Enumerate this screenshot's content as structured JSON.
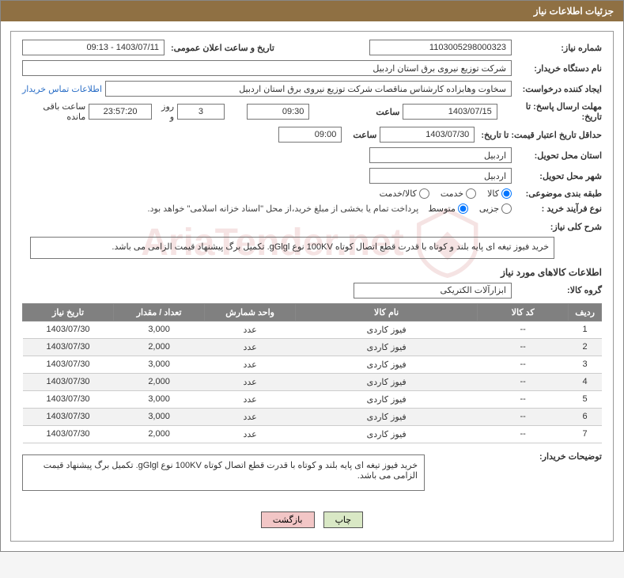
{
  "header": {
    "title": "جزئیات اطلاعات نیاز"
  },
  "labels": {
    "need_no": "شماره نیاز:",
    "announce_dt": "تاریخ و ساعت اعلان عمومی:",
    "buyer_name": "نام دستگاه خریدار:",
    "requester": "ایجاد کننده درخواست:",
    "contact_link": "اطلاعات تماس خریدار",
    "deadline": "مهلت ارسال پاسخ: تا تاریخ:",
    "hour": "ساعت",
    "days_and": "روز و",
    "remain": "ساعت باقی مانده",
    "validity": "حداقل تاریخ اعتبار قیمت: تا تاریخ:",
    "province": "استان محل تحویل:",
    "city": "شهر محل تحویل:",
    "category": "طبقه بندی موضوعی:",
    "cat_goods": "کالا",
    "cat_service": "خدمت",
    "cat_both": "کالا/خدمت",
    "process": "نوع فرآیند خرید :",
    "proc_small": "جزیی",
    "proc_medium": "متوسط",
    "process_note": "پرداخت تمام یا بخشی از مبلغ خرید،از محل \"اسناد خزانه اسلامی\" خواهد بود.",
    "general_desc": "شرح کلی نیاز:",
    "goods_info": "اطلاعات کالاهای مورد نیاز",
    "goods_group": "گروه کالا:",
    "buyer_notes": "توضیحات خریدار:"
  },
  "fields": {
    "need_no": "1103005298000323",
    "announce_dt": "1403/07/11 - 09:13",
    "buyer_name": "شرکت توزیع نیروی برق استان اردبیل",
    "requester": "سخاوت وهابزاده کارشناس مناقصات شرکت توزیع نیروی برق استان اردبیل",
    "deadline_date": "1403/07/15",
    "deadline_time": "09:30",
    "remain_days": "3",
    "remain_hms": "23:57:20",
    "validity_date": "1403/07/30",
    "validity_time": "09:00",
    "province": "اردبیل",
    "city": "اردبیل",
    "general_desc": "خرید فیوز تیغه ای پایه بلند و کوتاه با قدرت قطع اتصال کوتاه 100KV نوع gGlgl. تکمیل برگ پیشنهاد قیمت الزامی می باشد.",
    "goods_group": "ابزارآلات الکتریکی",
    "buyer_notes": "خرید فیوز تیغه ای پایه بلند و کوتاه با قدرت قطع اتصال کوتاه 100KV نوع gGlgl. تکمیل برگ پیشنهاد قیمت الزامی می باشد."
  },
  "radios": {
    "cat_goods": true,
    "cat_service": false,
    "cat_both": false,
    "proc_small": false,
    "proc_medium": true
  },
  "table": {
    "headers": {
      "idx": "ردیف",
      "code": "کد کالا",
      "name": "نام کالا",
      "unit": "واحد شمارش",
      "qty": "تعداد / مقدار",
      "date": "تاریخ نیاز"
    },
    "rows": [
      {
        "idx": "1",
        "code": "--",
        "name": "فیوز کاردی",
        "unit": "عدد",
        "qty": "3,000",
        "date": "1403/07/30"
      },
      {
        "idx": "2",
        "code": "--",
        "name": "فیوز کاردی",
        "unit": "عدد",
        "qty": "2,000",
        "date": "1403/07/30"
      },
      {
        "idx": "3",
        "code": "--",
        "name": "فیوز کاردی",
        "unit": "عدد",
        "qty": "3,000",
        "date": "1403/07/30"
      },
      {
        "idx": "4",
        "code": "--",
        "name": "فیوز کاردی",
        "unit": "عدد",
        "qty": "2,000",
        "date": "1403/07/30"
      },
      {
        "idx": "5",
        "code": "--",
        "name": "فیوز کاردی",
        "unit": "عدد",
        "qty": "3,000",
        "date": "1403/07/30"
      },
      {
        "idx": "6",
        "code": "--",
        "name": "فیوز کاردی",
        "unit": "عدد",
        "qty": "3,000",
        "date": "1403/07/30"
      },
      {
        "idx": "7",
        "code": "--",
        "name": "فیوز کاردی",
        "unit": "عدد",
        "qty": "2,000",
        "date": "1403/07/30"
      }
    ]
  },
  "buttons": {
    "print": "چاپ",
    "back": "بازگشت"
  },
  "watermark": "AriaTender.net",
  "colors": {
    "header_bg": "#8f7043",
    "table_header_bg": "#808080",
    "btn_print": "#d9e8c5",
    "btn_back": "#f2c6c6"
  }
}
